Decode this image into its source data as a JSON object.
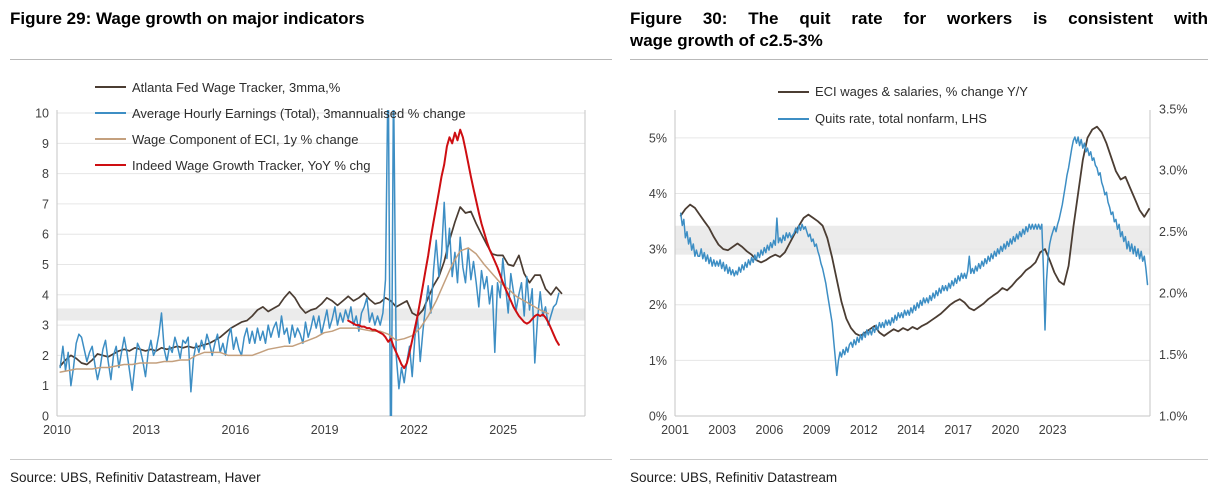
{
  "figures": [
    {
      "title": "Figure 29: Wage growth on major indicators",
      "title_lines": [
        "Figure 29: Wage growth on major indicators"
      ],
      "source": "Source: UBS, Refinitiv Datastream, Haver"
    },
    {
      "title": "Figure 30: The quit rate for workers is consistent with wage growth of c2.5-3%",
      "title_lines": [
        "Figure 30: The quit rate for workers is consistent with",
        "wage growth of c2.5-3%"
      ],
      "source": "Source: UBS, Refinitiv Datastream"
    }
  ],
  "colors": {
    "dark_brown": "#4b3d33",
    "blue": "#3d8ec4",
    "tan": "#c4a07e",
    "red": "#ce0e12",
    "gridline": "#e6e6e6",
    "axis_border": "#c6c6c6",
    "shaded_band": "#ebebeb"
  },
  "chart_data": [
    {
      "type": "line",
      "title": "Figure 29: Wage growth on major indicators",
      "xlabel": "",
      "ylabel": "",
      "grid": true,
      "legend_position": "top-left-inside",
      "xlim": [
        2009.9,
        2026.4
      ],
      "ylim": [
        0,
        10.1
      ],
      "ytick_vals": [
        0,
        1,
        2,
        3,
        4,
        5,
        6,
        7,
        8,
        9,
        10
      ],
      "ytick_labels": [
        "0",
        "1",
        "2",
        "3",
        "4",
        "5",
        "6",
        "7",
        "8",
        "9",
        "10"
      ],
      "xtick_labels": [
        "2010",
        "2013",
        "2016",
        "2019",
        "2022",
        "2025"
      ],
      "band": {
        "range": [
          3.15,
          3.55
        ],
        "note": "grey shaded band at c3-3.5%"
      },
      "series": [
        {
          "name": "Atlanta Fed Wage Tracker, 3mma,%",
          "color": "#4b3d33",
          "width": 1.7,
          "axis": "left",
          "x_start": 2010.0,
          "x_step": 0.16667,
          "values": [
            1.65,
            1.85,
            2.0,
            1.9,
            1.75,
            1.7,
            1.85,
            2.05,
            2.0,
            1.95,
            2.05,
            2.15,
            2.2,
            2.15,
            2.25,
            2.2,
            2.15,
            2.2,
            2.15,
            2.25,
            2.2,
            2.25,
            2.3,
            2.25,
            2.3,
            2.25,
            2.3,
            2.35,
            2.4,
            2.5,
            2.6,
            2.75,
            2.9,
            3.0,
            3.1,
            3.15,
            3.3,
            3.5,
            3.6,
            3.45,
            3.55,
            3.65,
            3.9,
            4.1,
            3.9,
            3.6,
            3.4,
            3.5,
            3.55,
            3.7,
            3.9,
            3.8,
            3.65,
            3.8,
            3.95,
            3.8,
            3.9,
            4.05,
            3.85,
            3.7,
            3.75,
            3.9,
            3.8,
            3.6,
            3.7,
            3.8,
            3.4,
            3.3,
            3.5,
            3.9,
            4.3,
            4.6,
            5.1,
            5.8,
            6.4,
            6.9,
            6.7,
            6.75,
            6.35,
            6.0,
            5.65,
            5.35,
            5.3,
            5.3,
            5.0,
            4.95,
            5.3,
            4.7,
            4.4,
            4.65,
            4.65,
            4.2,
            4.0,
            4.25,
            4.05
          ]
        },
        {
          "name": "Average Hourly Earnings (Total),  3mannualised % change",
          "color": "#3d8ec4",
          "width": 1.5,
          "axis": "left",
          "x_start": 2010.0,
          "x_step": 0.08333,
          "values": [
            1.6,
            2.3,
            1.5,
            2.1,
            1.0,
            1.6,
            2.4,
            2.7,
            2.6,
            2.2,
            1.8,
            2.1,
            2.3,
            1.7,
            1.2,
            1.6,
            2.2,
            2.5,
            1.8,
            1.2,
            2.0,
            2.3,
            1.6,
            2.1,
            2.6,
            2.1,
            1.5,
            0.85,
            1.7,
            2.4,
            2.2,
            1.8,
            1.3,
            2.1,
            2.5,
            2.0,
            2.2,
            2.7,
            3.4,
            2.2,
            1.8,
            2.3,
            2.1,
            2.6,
            2.3,
            1.9,
            2.5,
            2.4,
            2.6,
            0.8,
            1.9,
            2.4,
            2.1,
            2.5,
            2.2,
            2.7,
            2.4,
            2.0,
            2.4,
            2.7,
            2.1,
            2.4,
            2.0,
            2.6,
            2.9,
            2.2,
            2.6,
            2.2,
            2.0,
            2.6,
            2.9,
            2.4,
            2.8,
            2.4,
            2.9,
            2.5,
            2.8,
            2.4,
            3.0,
            2.6,
            2.9,
            3.1,
            2.6,
            3.3,
            2.7,
            2.9,
            2.4,
            3.0,
            2.6,
            2.9,
            2.7,
            2.4,
            3.1,
            2.6,
            2.9,
            3.3,
            2.9,
            3.3,
            2.7,
            3.1,
            3.5,
            2.9,
            3.2,
            3.6,
            3.0,
            3.4,
            3.1,
            3.5,
            3.2,
            3.6,
            3.0,
            3.3,
            2.8,
            3.4,
            3.6,
            3.9,
            3.1,
            3.4,
            3.0,
            3.3,
            3.0,
            3.4,
            4.5,
            11.8,
            -2.8,
            11.2,
            2.0,
            0.9,
            1.6,
            1.1,
            1.8,
            2.3,
            1.3,
            2.6,
            3.3,
            1.8,
            2.8,
            3.6,
            4.3,
            3.4,
            4.8,
            5.8,
            4.6,
            5.3,
            7.05,
            5.2,
            6.2,
            4.6,
            5.4,
            4.4,
            5.9,
            4.9,
            4.4,
            5.5,
            4.5,
            5.1,
            4.4,
            3.6,
            4.8,
            4.2,
            4.6,
            3.7,
            4.3,
            2.1,
            4.4,
            3.9,
            5.2,
            4.3,
            3.4,
            4.7,
            4.1,
            3.5,
            4.0,
            4.4,
            3.3,
            4.6,
            3.5,
            4.2,
            1.75,
            3.2,
            4.1,
            3.3,
            3.6,
            3.0,
            3.3,
            3.6,
            3.7,
            4.05
          ]
        },
        {
          "name": "Wage Component of ECI,  1y % change",
          "color": "#c4a07e",
          "width": 1.5,
          "axis": "left",
          "x_start": 2010.0,
          "x_step": 0.25,
          "values": [
            1.45,
            1.5,
            1.55,
            1.55,
            1.55,
            1.6,
            1.6,
            1.65,
            1.7,
            1.7,
            1.75,
            1.75,
            1.75,
            1.8,
            1.8,
            1.85,
            1.85,
            2.0,
            2.1,
            2.1,
            2.1,
            2.0,
            2.0,
            2.0,
            2.0,
            2.1,
            2.2,
            2.25,
            2.3,
            2.3,
            2.4,
            2.5,
            2.6,
            2.75,
            2.8,
            2.9,
            2.9,
            2.9,
            2.85,
            2.8,
            2.8,
            2.7,
            2.5,
            2.55,
            2.65,
            2.9,
            3.3,
            3.8,
            4.4,
            5.0,
            5.45,
            5.55,
            5.35,
            5.0,
            4.7,
            4.4,
            4.2,
            3.95,
            3.8,
            3.65,
            3.5,
            3.38
          ]
        },
        {
          "name": "Indeed Wage Growth Tracker, YoY % chg",
          "color": "#ce0e12",
          "width": 2.0,
          "axis": "left",
          "x_start": 2019.0,
          "x_step": 0.08333,
          "values": [
            3.15,
            3.1,
            3.05,
            3.0,
            3.0,
            2.95,
            2.95,
            2.9,
            2.9,
            2.85,
            2.85,
            2.8,
            2.75,
            2.7,
            2.6,
            2.45,
            2.55,
            2.3,
            2.1,
            1.9,
            1.7,
            1.58,
            1.75,
            2.1,
            2.5,
            2.9,
            3.3,
            3.8,
            4.3,
            4.8,
            5.3,
            5.9,
            6.4,
            6.9,
            7.4,
            7.9,
            8.3,
            8.9,
            9.2,
            9.0,
            9.35,
            9.1,
            9.45,
            9.2,
            8.8,
            8.35,
            7.9,
            7.5,
            7.1,
            6.7,
            6.35,
            6.05,
            5.75,
            5.5,
            5.3,
            5.1,
            4.9,
            4.65,
            4.4,
            4.2,
            4.0,
            3.8,
            3.6,
            3.45,
            3.3,
            3.2,
            3.1,
            3.05,
            3.1,
            3.2,
            3.3,
            3.35,
            3.3,
            3.35,
            3.25,
            3.1,
            2.9,
            2.7,
            2.5,
            2.35
          ]
        }
      ]
    },
    {
      "type": "line",
      "title": "Figure 30: The quit rate for workers is consistent with wage growth of c2.5-3%",
      "xlabel": "",
      "ylabel": "",
      "grid": true,
      "legend_position": "top-center-inside",
      "xlim": [
        2000.7,
        2025.8
      ],
      "ylim": [
        0,
        5.5
      ],
      "right_ylim": [
        1.0,
        3.49
      ],
      "ytick_vals": [
        0,
        1,
        2,
        3,
        4,
        5
      ],
      "ytick_labels": [
        "0%",
        "1%",
        "2%",
        "3%",
        "4%",
        "5%"
      ],
      "rtick_vals": [
        1.0,
        1.5,
        2.0,
        2.5,
        3.0,
        3.5
      ],
      "rtick_labels": [
        "1.0%",
        "1.5%",
        "2.0%",
        "2.5%",
        "3.0%",
        "3.5%"
      ],
      "xtick_labels": [
        "2001",
        "2003",
        "2006",
        "2009",
        "2012",
        "2014",
        "2017",
        "2020",
        "2023"
      ],
      "band": {
        "range": [
          2.9,
          3.42
        ],
        "note": "grey shaded band, quits consistent with wage growth c2.5-3%"
      },
      "series": [
        {
          "name": "ECI wages & salaries, % change Y/Y",
          "color": "#4b3d33",
          "width": 1.8,
          "axis": "left",
          "x_start": 2001.0,
          "x_step": 0.25,
          "values": [
            3.6,
            3.72,
            3.8,
            3.74,
            3.62,
            3.5,
            3.38,
            3.22,
            3.08,
            3.0,
            2.98,
            3.04,
            3.1,
            3.04,
            2.96,
            2.9,
            2.8,
            2.76,
            2.8,
            2.86,
            2.9,
            2.86,
            2.94,
            3.1,
            3.26,
            3.42,
            3.56,
            3.62,
            3.56,
            3.5,
            3.42,
            3.2,
            2.85,
            2.45,
            2.05,
            1.75,
            1.58,
            1.48,
            1.44,
            1.5,
            1.56,
            1.62,
            1.5,
            1.44,
            1.5,
            1.56,
            1.52,
            1.58,
            1.54,
            1.6,
            1.56,
            1.62,
            1.66,
            1.72,
            1.78,
            1.84,
            1.92,
            2.0,
            2.06,
            2.1,
            2.04,
            1.94,
            1.9,
            1.96,
            2.02,
            2.1,
            2.16,
            2.22,
            2.3,
            2.26,
            2.34,
            2.44,
            2.52,
            2.62,
            2.68,
            2.76,
            2.94,
            3.0,
            2.8,
            2.58,
            2.42,
            2.36,
            2.7,
            3.4,
            4.0,
            4.6,
            5.0,
            5.15,
            5.2,
            5.1,
            4.9,
            4.65,
            4.4,
            4.25,
            4.3,
            4.1,
            3.9,
            3.7,
            3.58,
            3.72
          ]
        },
        {
          "name": "Quits rate, total nonfarm, LHS",
          "color": "#3d8ec4",
          "width": 1.5,
          "axis": "right",
          "x_start": 2001.0,
          "x_step": 0.08333,
          "values": [
            2.65,
            2.55,
            2.6,
            2.45,
            2.5,
            2.4,
            2.45,
            2.35,
            2.4,
            2.3,
            2.35,
            2.3,
            2.3,
            2.36,
            2.28,
            2.33,
            2.26,
            2.31,
            2.24,
            2.29,
            2.22,
            2.27,
            2.22,
            2.26,
            2.22,
            2.27,
            2.2,
            2.25,
            2.18,
            2.23,
            2.16,
            2.21,
            2.15,
            2.19,
            2.14,
            2.18,
            2.15,
            2.21,
            2.17,
            2.23,
            2.19,
            2.25,
            2.21,
            2.27,
            2.23,
            2.29,
            2.25,
            2.31,
            2.27,
            2.33,
            2.29,
            2.35,
            2.31,
            2.37,
            2.33,
            2.39,
            2.35,
            2.41,
            2.37,
            2.43,
            2.39,
            2.61,
            2.41,
            2.45,
            2.41,
            2.47,
            2.43,
            2.49,
            2.45,
            2.49,
            2.45,
            2.47,
            2.49,
            2.53,
            2.49,
            2.55,
            2.51,
            2.56,
            2.52,
            2.54,
            2.5,
            2.46,
            2.48,
            2.42,
            2.44,
            2.38,
            2.4,
            2.34,
            2.3,
            2.24,
            2.2,
            2.14,
            2.08,
            2.0,
            1.92,
            1.84,
            1.76,
            1.62,
            1.48,
            1.33,
            1.45,
            1.52,
            1.48,
            1.54,
            1.5,
            1.56,
            1.52,
            1.58,
            1.6,
            1.56,
            1.62,
            1.58,
            1.64,
            1.6,
            1.66,
            1.62,
            1.68,
            1.64,
            1.7,
            1.66,
            1.7,
            1.66,
            1.72,
            1.68,
            1.74,
            1.7,
            1.76,
            1.72,
            1.76,
            1.72,
            1.78,
            1.74,
            1.78,
            1.74,
            1.8,
            1.76,
            1.82,
            1.78,
            1.84,
            1.8,
            1.84,
            1.8,
            1.86,
            1.82,
            1.86,
            1.82,
            1.88,
            1.84,
            1.9,
            1.86,
            1.92,
            1.88,
            1.94,
            1.9,
            1.96,
            1.92,
            1.96,
            1.92,
            1.98,
            1.94,
            2.0,
            1.96,
            2.02,
            1.98,
            2.04,
            2.0,
            2.06,
            2.02,
            2.06,
            2.02,
            2.08,
            2.04,
            2.1,
            2.06,
            2.12,
            2.08,
            2.14,
            2.1,
            2.16,
            2.12,
            2.16,
            2.12,
            2.18,
            2.3,
            2.16,
            2.2,
            2.16,
            2.22,
            2.18,
            2.24,
            2.2,
            2.26,
            2.22,
            2.28,
            2.24,
            2.3,
            2.26,
            2.32,
            2.28,
            2.34,
            2.3,
            2.36,
            2.32,
            2.38,
            2.34,
            2.4,
            2.36,
            2.42,
            2.38,
            2.44,
            2.4,
            2.46,
            2.42,
            2.48,
            2.44,
            2.5,
            2.46,
            2.52,
            2.48,
            2.54,
            2.5,
            2.56,
            2.52,
            2.56,
            2.52,
            2.56,
            2.52,
            2.56,
            2.52,
            2.56,
            2.2,
            1.7,
            2.1,
            2.3,
            2.4,
            2.46,
            2.5,
            2.54,
            2.5,
            2.56,
            2.6,
            2.66,
            2.72,
            2.8,
            2.88,
            2.96,
            3.02,
            3.1,
            3.18,
            3.24,
            3.27,
            3.22,
            3.27,
            3.2,
            3.25,
            3.18,
            3.22,
            3.15,
            3.18,
            3.12,
            3.15,
            3.08,
            3.1,
            3.04,
            3.02,
            2.96,
            2.98,
            2.9,
            2.86,
            2.8,
            2.82,
            2.74,
            2.7,
            2.64,
            2.66,
            2.58,
            2.6,
            2.52,
            2.56,
            2.46,
            2.5,
            2.42,
            2.46,
            2.36,
            2.42,
            2.34,
            2.4,
            2.32,
            2.38,
            2.3,
            2.36,
            2.28,
            2.34,
            2.26,
            2.3,
            2.2,
            2.07
          ]
        }
      ]
    }
  ]
}
